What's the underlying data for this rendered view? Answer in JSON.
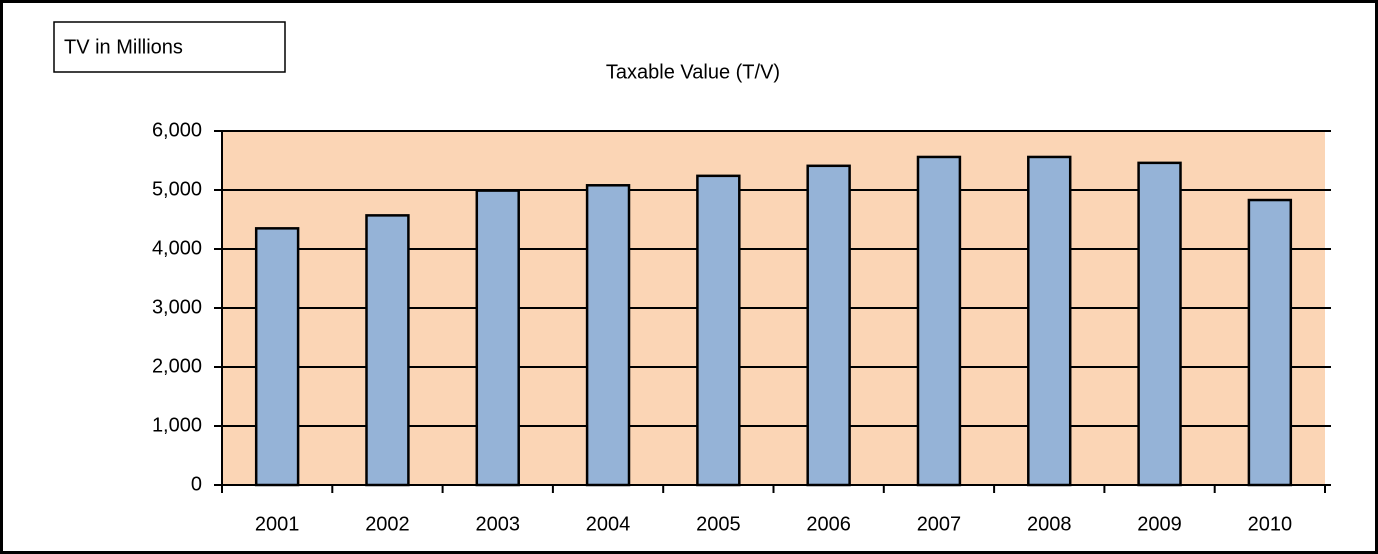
{
  "chart_data": {
    "type": "bar",
    "title": "Taxable Value (T/V)",
    "annotation": "TV in Millions",
    "categories": [
      "2001",
      "2002",
      "2003",
      "2004",
      "2005",
      "2006",
      "2007",
      "2008",
      "2009",
      "2010"
    ],
    "values": [
      4350,
      4570,
      4990,
      5080,
      5240,
      5410,
      5560,
      5560,
      5460,
      4830
    ],
    "color": "#95b3d7",
    "plot_background": "#fbd5b5",
    "ylim": [
      0,
      6000
    ],
    "yticks": [
      0,
      {
        "value": 1000,
        "label": "1,000"
      },
      {
        "value": 2000,
        "label": "2,000"
      },
      {
        "value": 3000,
        "label": "3,000"
      },
      {
        "value": 4000,
        "label": "4,000"
      },
      {
        "value": 5000,
        "label": "5,000"
      },
      {
        "value": 6000,
        "label": "6,000"
      }
    ],
    "grid": true
  }
}
